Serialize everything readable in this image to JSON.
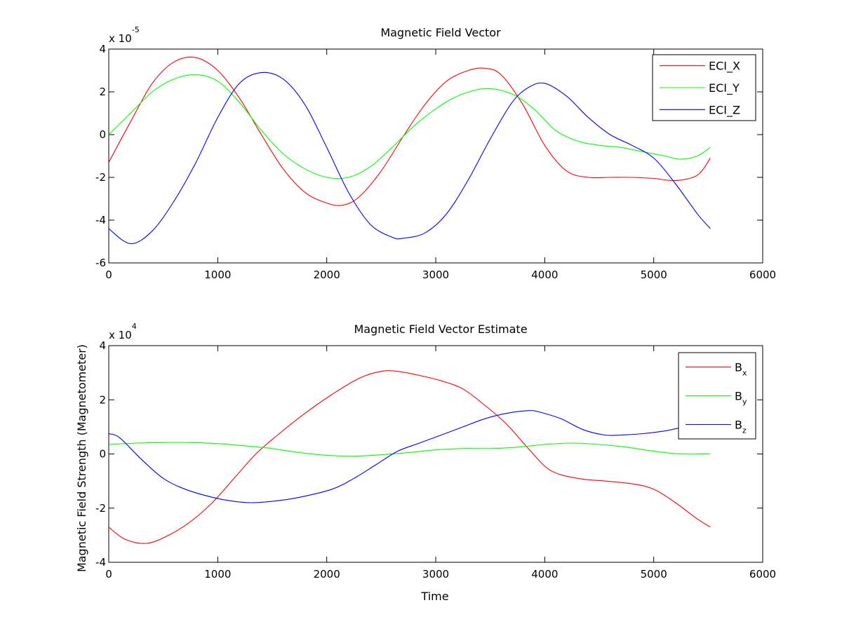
{
  "chart_data": [
    {
      "type": "line",
      "title": "Magnetic Field Vector",
      "xlabel": "",
      "ylabel": "",
      "xlim": [
        0,
        6000
      ],
      "ylim": [
        -6,
        4
      ],
      "y_multiplier_base": "x 10",
      "y_multiplier_exponent": "-5",
      "x_ticks": [
        0,
        1000,
        2000,
        3000,
        4000,
        5000,
        6000
      ],
      "x_tick_labels": [
        "0",
        "1000",
        "2000",
        "3000",
        "4000",
        "5000",
        "6000"
      ],
      "y_ticks": [
        -6,
        -4,
        -2,
        0,
        2,
        4
      ],
      "y_tick_labels": [
        "-6",
        "-4",
        "-2",
        "0",
        "2",
        "4"
      ],
      "grid": false,
      "legend_position": "top-right",
      "series": [
        {
          "name": "ECI_X",
          "name_base": "ECI_X",
          "name_sub": "",
          "color": "#ff0000",
          "x": [
            0,
            200,
            400,
            600,
            800,
            1000,
            1200,
            1400,
            1600,
            1800,
            2000,
            2150,
            2300,
            2500,
            2700,
            2900,
            3100,
            3300,
            3450,
            3600,
            3800,
            4000,
            4200,
            4400,
            4600,
            4800,
            5000,
            5200,
            5400,
            5520
          ],
          "y": [
            -1.3,
            0.6,
            2.4,
            3.4,
            3.6,
            3.0,
            1.7,
            0.0,
            -1.6,
            -2.7,
            -3.2,
            -3.3,
            -2.9,
            -1.7,
            -0.1,
            1.4,
            2.5,
            3.0,
            3.1,
            2.8,
            1.4,
            -0.5,
            -1.7,
            -2.0,
            -2.0,
            -2.0,
            -2.05,
            -2.15,
            -1.9,
            -1.1
          ]
        },
        {
          "name": "ECI_Y",
          "name_base": "ECI_Y",
          "name_sub": "",
          "color": "#00ff00",
          "x": [
            0,
            200,
            400,
            600,
            800,
            1000,
            1200,
            1400,
            1600,
            1800,
            2000,
            2200,
            2400,
            2600,
            2800,
            3000,
            3200,
            3450,
            3700,
            3900,
            4100,
            4300,
            4500,
            4700,
            4900,
            5100,
            5250,
            5400,
            5520
          ],
          "y": [
            0.0,
            1.0,
            2.0,
            2.6,
            2.8,
            2.5,
            1.5,
            0.2,
            -0.9,
            -1.6,
            -2.0,
            -2.0,
            -1.5,
            -0.6,
            0.4,
            1.2,
            1.8,
            2.15,
            1.9,
            1.2,
            0.2,
            -0.3,
            -0.5,
            -0.6,
            -0.8,
            -1.0,
            -1.15,
            -1.0,
            -0.6
          ]
        },
        {
          "name": "ECI_Z",
          "name_base": "ECI_Z",
          "name_sub": "",
          "color": "#0000ff",
          "x": [
            0,
            200,
            400,
            600,
            800,
            1000,
            1200,
            1400,
            1600,
            1800,
            2000,
            2200,
            2400,
            2600,
            2700,
            2900,
            3100,
            3300,
            3500,
            3700,
            3850,
            4000,
            4200,
            4400,
            4600,
            4800,
            5000,
            5200,
            5400,
            5520
          ],
          "y": [
            -4.4,
            -5.1,
            -4.5,
            -3.1,
            -1.3,
            0.8,
            2.4,
            2.9,
            2.6,
            1.4,
            -0.6,
            -2.7,
            -4.2,
            -4.8,
            -4.85,
            -4.6,
            -3.7,
            -2.1,
            -0.2,
            1.5,
            2.2,
            2.4,
            1.8,
            0.8,
            0.0,
            -0.5,
            -1.1,
            -2.3,
            -3.7,
            -4.4
          ]
        }
      ]
    },
    {
      "type": "line",
      "title": "Magnetic Field Vector Estimate",
      "xlabel": "Time",
      "ylabel": "Magnetic Field Strength (Magnetometer)",
      "xlim": [
        0,
        6000
      ],
      "ylim": [
        -4,
        4
      ],
      "y_multiplier_base": "x 10",
      "y_multiplier_exponent": "4",
      "x_ticks": [
        0,
        1000,
        2000,
        3000,
        4000,
        5000,
        6000
      ],
      "x_tick_labels": [
        "0",
        "1000",
        "2000",
        "3000",
        "4000",
        "5000",
        "6000"
      ],
      "y_ticks": [
        -4,
        -2,
        0,
        2,
        4
      ],
      "y_tick_labels": [
        "-4",
        "-2",
        "0",
        "2",
        "4"
      ],
      "grid": false,
      "legend_position": "top-right",
      "series": [
        {
          "name": "Bx",
          "name_base": "B",
          "name_sub": "x",
          "color": "#ff0000",
          "x": [
            0,
            150,
            350,
            550,
            750,
            950,
            1150,
            1350,
            1550,
            1800,
            2050,
            2300,
            2500,
            2650,
            2850,
            3050,
            3250,
            3450,
            3650,
            3850,
            4050,
            4300,
            4550,
            4800,
            5000,
            5200,
            5400,
            5520
          ],
          "y": [
            -2.7,
            -3.15,
            -3.3,
            -3.0,
            -2.5,
            -1.8,
            -0.9,
            0.0,
            0.7,
            1.5,
            2.2,
            2.8,
            3.05,
            3.05,
            2.9,
            2.7,
            2.4,
            1.8,
            1.1,
            0.2,
            -0.6,
            -0.9,
            -1.0,
            -1.1,
            -1.3,
            -1.8,
            -2.4,
            -2.7
          ]
        },
        {
          "name": "By",
          "name_base": "B",
          "name_sub": "y",
          "color": "#00ff00",
          "x": [
            0,
            250,
            500,
            750,
            1000,
            1250,
            1500,
            1750,
            2000,
            2250,
            2500,
            2750,
            3000,
            3250,
            3500,
            3750,
            4000,
            4250,
            4500,
            4750,
            5000,
            5250,
            5520
          ],
          "y": [
            0.35,
            0.4,
            0.42,
            0.42,
            0.38,
            0.3,
            0.2,
            0.05,
            -0.05,
            -0.08,
            -0.03,
            0.05,
            0.15,
            0.2,
            0.2,
            0.25,
            0.35,
            0.4,
            0.35,
            0.25,
            0.1,
            0.0,
            0.0
          ]
        },
        {
          "name": "Bz",
          "name_base": "B",
          "name_sub": "z",
          "color": "#0000ff",
          "x": [
            0,
            100,
            300,
            500,
            700,
            950,
            1150,
            1300,
            1500,
            1750,
            2050,
            2250,
            2450,
            2650,
            2850,
            3050,
            3250,
            3450,
            3650,
            3850,
            3950,
            4150,
            4350,
            4550,
            4700,
            4900,
            5100,
            5300,
            5520
          ],
          "y": [
            0.75,
            0.6,
            -0.2,
            -0.9,
            -1.3,
            -1.6,
            -1.75,
            -1.8,
            -1.75,
            -1.6,
            -1.3,
            -0.9,
            -0.4,
            0.1,
            0.4,
            0.7,
            1.0,
            1.3,
            1.5,
            1.6,
            1.55,
            1.3,
            0.9,
            0.7,
            0.7,
            0.75,
            0.85,
            1.0,
            1.0
          ]
        }
      ]
    }
  ]
}
